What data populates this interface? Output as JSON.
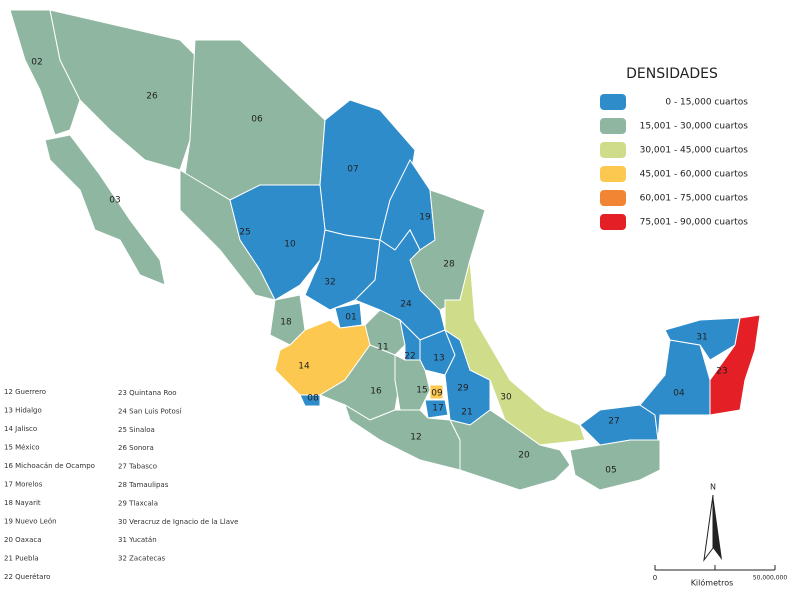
{
  "legend": {
    "title": "DENSIDADES",
    "items": [
      {
        "label": "0 - 15,000 cuartos",
        "color": "#2f8ccb"
      },
      {
        "label": "15,001 - 30,000 cuartos",
        "color": "#8fb6a0"
      },
      {
        "label": "30,001 - 45,000 cuartos",
        "color": "#cfdd8a"
      },
      {
        "label": "45,001 - 60,000 cuartos",
        "color": "#fcc84f"
      },
      {
        "label": "60,001 - 75,000 cuartos",
        "color": "#f28533"
      },
      {
        "label": "75,001 - 90,000 cuartos",
        "color": "#e41f25"
      }
    ]
  },
  "states": [
    {
      "label": "02",
      "color": "#8fb6a0"
    },
    {
      "label": "26",
      "color": "#8fb6a0"
    },
    {
      "label": "06",
      "color": "#8fb6a0"
    },
    {
      "label": "03",
      "color": "#8fb6a0"
    },
    {
      "label": "07",
      "color": "#2f8ccb"
    },
    {
      "label": "25",
      "color": "#8fb6a0"
    },
    {
      "label": "10",
      "color": "#2f8ccb"
    },
    {
      "label": "19",
      "color": "#2f8ccb"
    },
    {
      "label": "28",
      "color": "#8fb6a0"
    },
    {
      "label": "32",
      "color": "#2f8ccb"
    },
    {
      "label": "24",
      "color": "#2f8ccb"
    },
    {
      "label": "18",
      "color": "#8fb6a0"
    },
    {
      "label": "01",
      "color": "#2f8ccb"
    },
    {
      "label": "14",
      "color": "#fcc84f"
    },
    {
      "label": "11",
      "color": "#8fb6a0"
    },
    {
      "label": "22",
      "color": "#2f8ccb"
    },
    {
      "label": "13",
      "color": "#2f8ccb"
    },
    {
      "label": "16",
      "color": "#8fb6a0"
    },
    {
      "label": "15",
      "color": "#8fb6a0"
    },
    {
      "label": "09",
      "color": "#fcc84f"
    },
    {
      "label": "29",
      "color": "#2f8ccb"
    },
    {
      "label": "17",
      "color": "#2f8ccb"
    },
    {
      "label": "21",
      "color": "#2f8ccb"
    },
    {
      "label": "30",
      "color": "#cfdd8a"
    },
    {
      "label": "12",
      "color": "#8fb6a0"
    },
    {
      "label": "20",
      "color": "#8fb6a0"
    },
    {
      "label": "05",
      "color": "#8fb6a0"
    },
    {
      "label": "27",
      "color": "#2f8ccb"
    },
    {
      "label": "04",
      "color": "#2f8ccb"
    },
    {
      "label": "31",
      "color": "#2f8ccb"
    },
    {
      "label": "23",
      "color": "#e41f25"
    },
    {
      "label": "08",
      "color": "#2f8ccb"
    }
  ],
  "state_list": {
    "left": [
      "12 Guerrero",
      "13 Hidalgo",
      "14 Jalisco",
      "15 México",
      "16 Michoacán de Ocampo",
      "17 Morelos",
      "18 Nayarit",
      "19 Nuevo León",
      "20 Oaxaca",
      "21 Puebla",
      "22 Querétaro"
    ],
    "right": [
      "23 Quintana Roo",
      "24 San Luis Potosí",
      "25 Sinaloa",
      "26 Sonora",
      "27 Tabasco",
      "28 Tamaulipas",
      "29 Tlaxcala",
      "30 Veracruz de Ignacio de la Llave",
      "31 Yucatán",
      "32 Zacatecas"
    ]
  },
  "north": "N",
  "scale": {
    "start": "0",
    "end": "50,000,000",
    "unit": "Kilómetros"
  }
}
